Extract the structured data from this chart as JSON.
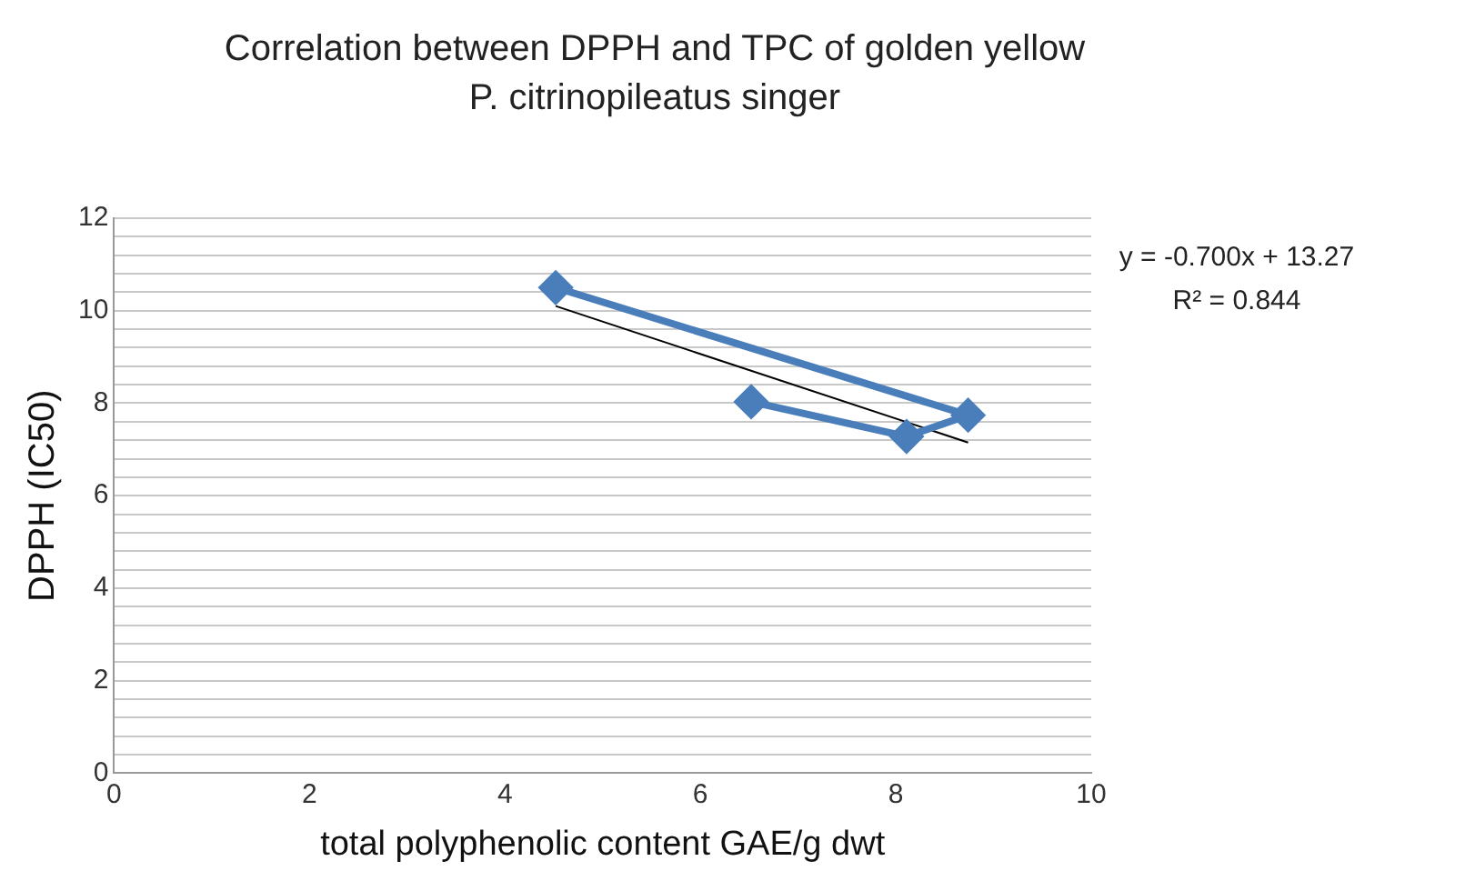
{
  "chart_data": {
    "type": "line",
    "title": "Correlation between DPPH and TPC of golden yellow P. citrinopileatus singer",
    "xlabel": "total polyphenolic content GAE/g dwt",
    "ylabel": "DPPH (IC50)",
    "series": [
      {
        "color": "#4a7ebb",
        "x": [
          4.52,
          8.74,
          8.11,
          6.52
        ],
        "values": [
          10.5,
          7.74,
          7.28,
          8.03
        ],
        "marker": "diamond"
      },
      {
        "color": "#000000",
        "x": [
          4.52,
          8.74
        ],
        "values": [
          10.1,
          7.15
        ],
        "marker": "none"
      }
    ],
    "xlim": [
      0,
      10
    ],
    "xticks": [
      0,
      2,
      4,
      6,
      8,
      10
    ],
    "ylim": [
      0,
      12
    ],
    "yticks": [
      0,
      {
        "value": 0.4,
        "label": null
      },
      {
        "value": 0.8,
        "label": null
      },
      {
        "value": 1.2,
        "label": null
      },
      {
        "value": 1.6,
        "label": null
      },
      2,
      {
        "value": 2.4,
        "label": null
      },
      {
        "value": 2.8,
        "label": null
      },
      {
        "value": 3.2,
        "label": null
      },
      {
        "value": 3.6,
        "label": null
      },
      4,
      {
        "value": 4.4,
        "label": null
      },
      {
        "value": 4.8,
        "label": null
      },
      {
        "value": 5.2,
        "label": null
      },
      {
        "value": 5.6,
        "label": null
      },
      6,
      {
        "value": 6.4,
        "label": null
      },
      {
        "value": 6.8,
        "label": null
      },
      {
        "value": 7.2,
        "label": null
      },
      {
        "value": 7.6,
        "label": null
      },
      8,
      {
        "value": 8.4,
        "label": null
      },
      {
        "value": 8.8,
        "label": null
      },
      {
        "value": 9.2,
        "label": null
      },
      {
        "value": 9.6,
        "label": null
      },
      10,
      {
        "value": 10.4,
        "label": null
      },
      {
        "value": 10.8,
        "label": null
      },
      {
        "value": 11.2,
        "label": null
      },
      {
        "value": 11.6,
        "label": null
      },
      12
    ],
    "grid": "y",
    "legend": false,
    "annotations": [
      "y = -0.700x + 13.27",
      "R² = 0.844"
    ]
  }
}
